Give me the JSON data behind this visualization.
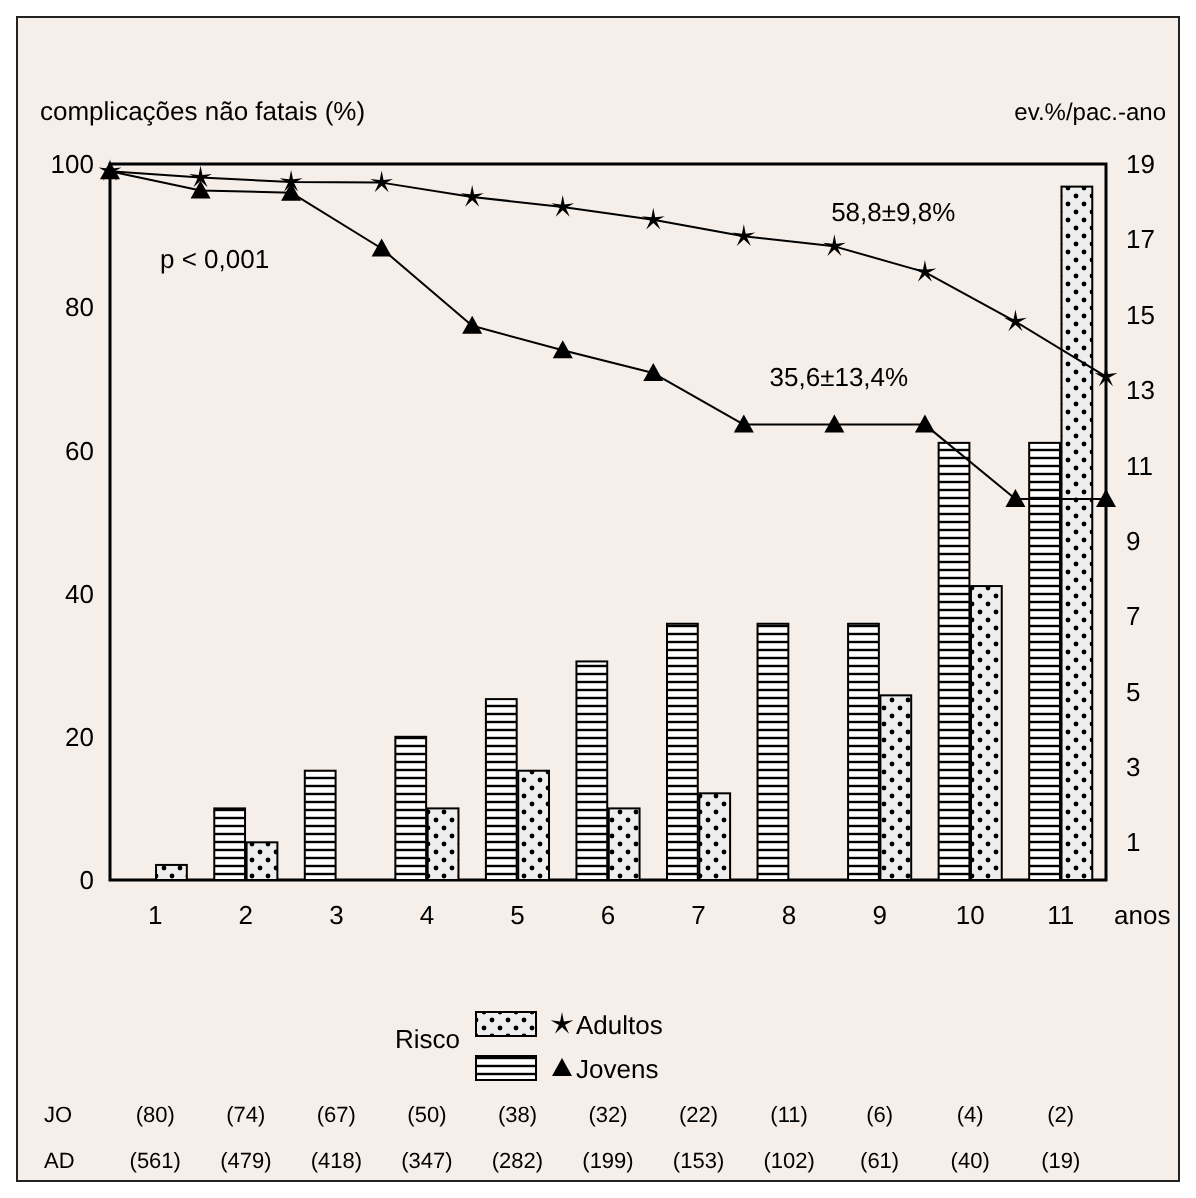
{
  "chart_data": {
    "type": "bar",
    "ylabel": "complicações não fatais (%)",
    "y2label": "ev.%/pac.-ano",
    "xlabel": "anos",
    "legend_title": "Risco",
    "legend": "bottom",
    "grid": false,
    "xlim": [
      0,
      11
    ],
    "xticks": [
      {
        "value": 0.5,
        "label": "1"
      },
      {
        "value": 1.5,
        "label": "2"
      },
      {
        "value": 2.5,
        "label": "3"
      },
      {
        "value": 3.5,
        "label": "4"
      },
      {
        "value": 4.5,
        "label": "5"
      },
      {
        "value": 5.5,
        "label": "6"
      },
      {
        "value": 6.5,
        "label": "7"
      },
      {
        "value": 7.5,
        "label": "8"
      },
      {
        "value": 8.5,
        "label": "9"
      },
      {
        "value": 9.5,
        "label": "10"
      },
      {
        "value": 10.5,
        "label": "11"
      }
    ],
    "ylim": [
      0,
      100
    ],
    "yticks": [
      0,
      20,
      40,
      60,
      80,
      100
    ],
    "y2lim": [
      0,
      19
    ],
    "y2ticks": [
      1,
      3,
      5,
      7,
      9,
      11,
      13,
      15,
      17,
      19
    ],
    "series": [
      {
        "axis": "y2",
        "color": "#000000",
        "x": [
          0.5,
          1.5,
          2.5,
          3.5,
          4.5,
          5.5,
          6.5,
          7.5,
          8.5,
          9.5,
          10.5
        ],
        "values": [
          0,
          1.9,
          2.9,
          3.8,
          4.8,
          5.8,
          6.8,
          6.8,
          6.8,
          11.6,
          11.6
        ]
      },
      {
        "axis": "y2",
        "color": "#000000",
        "x": [
          0.5,
          1.5,
          2.5,
          3.5,
          4.5,
          5.5,
          6.5,
          7.5,
          8.5,
          9.5,
          10.5
        ],
        "values": [
          0.4,
          1.0,
          0,
          1.9,
          2.9,
          1.9,
          2.3,
          0,
          4.9,
          7.8,
          18.4
        ]
      },
      {
        "name": "Adultos",
        "type": "line",
        "marker": "star",
        "color": "#000000",
        "x": [
          0,
          1,
          2,
          3,
          4,
          5,
          6,
          7,
          8,
          9,
          10,
          11
        ],
        "values": [
          99,
          98.1,
          97.5,
          97.4,
          95.4,
          94,
          92.2,
          89.9,
          88.5,
          84.9,
          78,
          70.3
        ]
      },
      {
        "name": "Jovens",
        "type": "line",
        "marker": "triangle",
        "color": "#000000",
        "x": [
          0,
          1,
          2,
          3,
          4,
          5,
          6,
          7,
          8,
          9,
          10,
          11
        ],
        "values": [
          99,
          96.3,
          96,
          88.2,
          77.4,
          74,
          70.8,
          63.6,
          63.6,
          63.6,
          53.2,
          53.2
        ]
      }
    ],
    "annotations": [
      "p < 0,001",
      "58,8±9,8%",
      "35,6±13,4%",
      "JO (80) (74) (67) (50) (38) (32) (22) (11) (6) (4) (2)",
      "AD (561) (479) (418) (347) (282) (199) (153) (102) (61) (40) (19)"
    ]
  }
}
